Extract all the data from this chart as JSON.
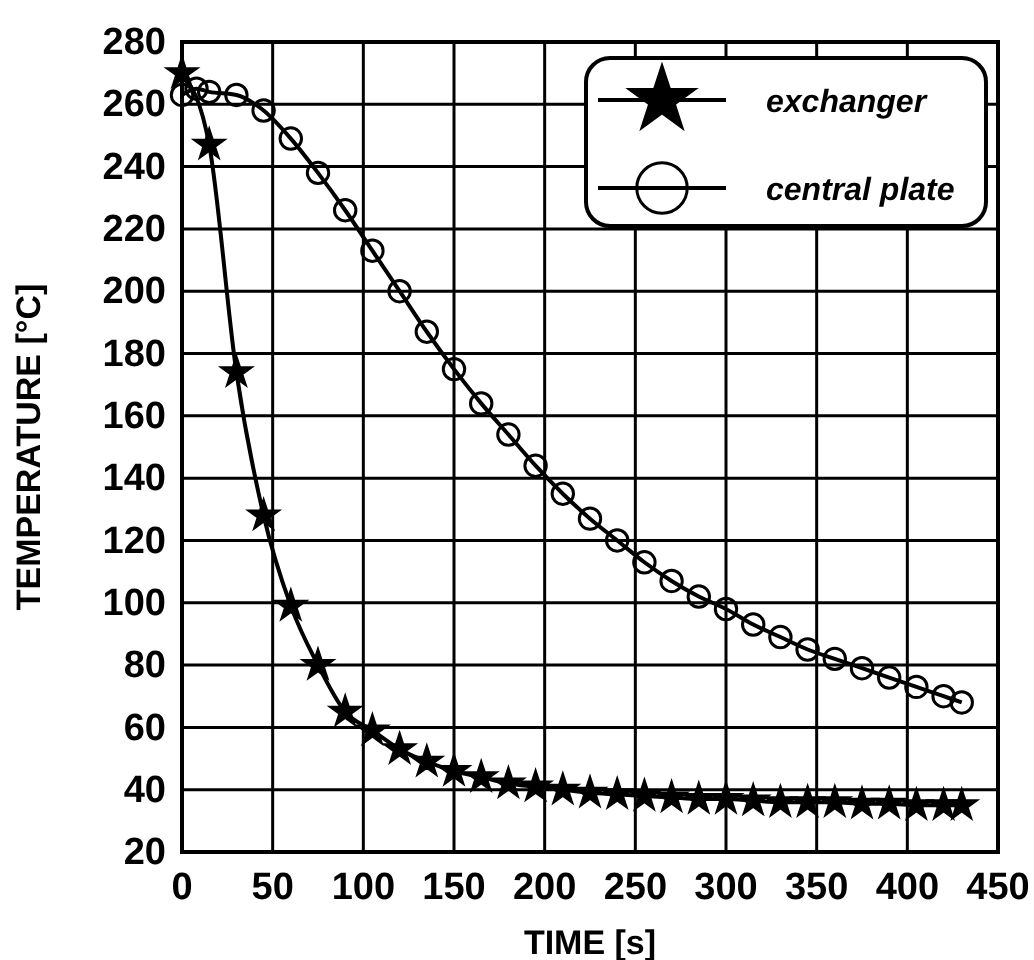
{
  "chart_data": {
    "type": "line",
    "xlabel": "TIME [s]",
    "ylabel": "TEMPERATURE [°C]",
    "xlim": [
      0,
      450
    ],
    "ylim": [
      20,
      280
    ],
    "xticks": [
      0,
      50,
      100,
      150,
      200,
      250,
      300,
      350,
      400,
      450
    ],
    "yticks": [
      20,
      40,
      60,
      80,
      100,
      120,
      140,
      160,
      180,
      200,
      220,
      240,
      260,
      280
    ],
    "grid": true,
    "legend": "top right",
    "series": [
      {
        "name": "exchanger",
        "color": "#000000",
        "marker": "star",
        "x": [
          0,
          15,
          30,
          45,
          60,
          75,
          90,
          105,
          120,
          135,
          150,
          165,
          180,
          195,
          210,
          225,
          240,
          255,
          270,
          285,
          300,
          315,
          330,
          345,
          360,
          375,
          390,
          405,
          420,
          430
        ],
        "values": [
          270,
          247,
          174,
          128,
          99,
          80,
          65,
          59,
          53,
          49,
          46,
          44,
          42,
          41,
          40,
          39,
          38.5,
          38,
          37.5,
          37,
          37,
          36.5,
          36,
          36,
          36,
          35.5,
          35.5,
          35,
          35,
          35
        ]
      },
      {
        "name": "central plate",
        "color": "#000000",
        "marker": "circle",
        "x": [
          0,
          8,
          15,
          30,
          45,
          60,
          75,
          90,
          105,
          120,
          135,
          150,
          165,
          180,
          195,
          210,
          225,
          240,
          255,
          270,
          285,
          300,
          315,
          330,
          345,
          360,
          375,
          390,
          405,
          420,
          430
        ],
        "values": [
          263,
          265,
          264,
          263,
          258,
          249,
          238,
          226,
          213,
          200,
          187,
          175,
          164,
          154,
          144,
          135,
          127,
          120,
          113,
          107,
          102,
          98,
          93,
          89,
          85,
          82,
          79,
          76,
          73,
          70,
          68
        ]
      }
    ]
  }
}
